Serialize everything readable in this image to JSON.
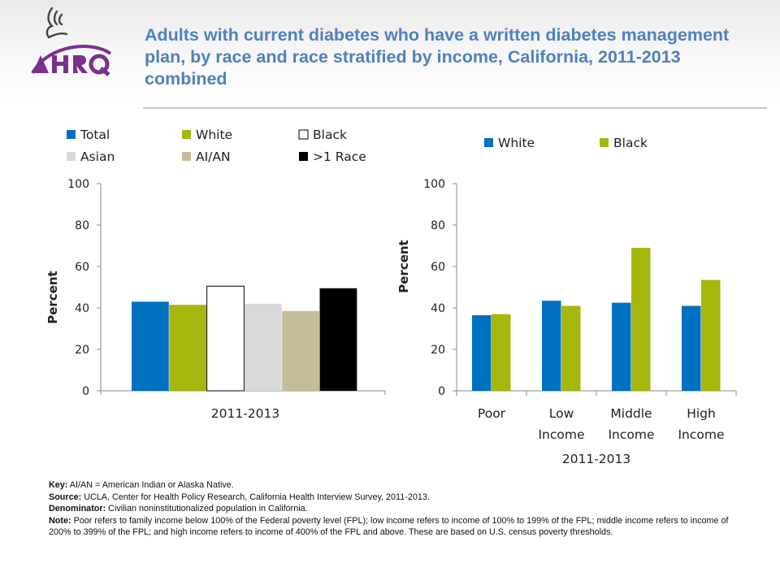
{
  "title": "Adults with current diabetes who have a written diabetes management plan, by race and race stratified by income, California, 2011-2013 combined",
  "logo": {
    "name": "AHRQ"
  },
  "colors": {
    "total": "#0070c0",
    "white": "#a5b70d",
    "black_fill": "#ffffff",
    "asian": "#d9d9d9",
    "aian": "#c4bd97",
    "multi": "#000000"
  },
  "chart_data": [
    {
      "type": "bar",
      "categories": [
        "2011-2013"
      ],
      "series": [
        {
          "name": "Total",
          "values": [
            43
          ]
        },
        {
          "name": "White",
          "values": [
            41.5
          ]
        },
        {
          "name": "Black",
          "values": [
            50.5
          ]
        },
        {
          "name": "Asian",
          "values": [
            42
          ]
        },
        {
          "name": "AI/AN",
          "values": [
            38.5
          ]
        },
        {
          "name": ">1 Race",
          "values": [
            49.5
          ]
        }
      ],
      "ylabel": "Percent",
      "ylim": [
        0,
        100
      ],
      "yticks": [
        "0",
        "20",
        "40",
        "60",
        "80",
        "100"
      ],
      "legend": "top"
    },
    {
      "type": "bar",
      "categories": [
        "Poor",
        "Low Income",
        "Middle Income",
        "High Income"
      ],
      "series": [
        {
          "name": "White",
          "values": [
            36.5,
            43.5,
            42.5,
            41
          ]
        },
        {
          "name": "Black",
          "values": [
            37,
            41,
            69,
            53.5
          ]
        }
      ],
      "xlabel": "2011-2013",
      "ylabel": "Percent",
      "ylim": [
        0,
        100
      ],
      "yticks": [
        "0",
        "20",
        "40",
        "60",
        "80",
        "100"
      ],
      "legend": "top"
    }
  ],
  "notes": {
    "key_label": "Key:",
    "key_text": " AI/AN = American Indian or Alaska Native.",
    "source_label": "Source:",
    "source_text": " UCLA, Center for Health Policy Research, California Health Interview Survey, 2011-2013.",
    "denominator_label": "Denominator:",
    "denominator_text": " Civilian noninstitutionalized population in California.",
    "note_label": "Note:",
    "note_text": " Poor refers to family income below 100% of the Federal poverty level (FPL); low income refers to income of 100% to 199% of the FPL; middle income refers to income of 200% to 399% of the FPL; and high income refers to income of 400% of the FPL and above. These are based on U.S. census poverty thresholds."
  }
}
